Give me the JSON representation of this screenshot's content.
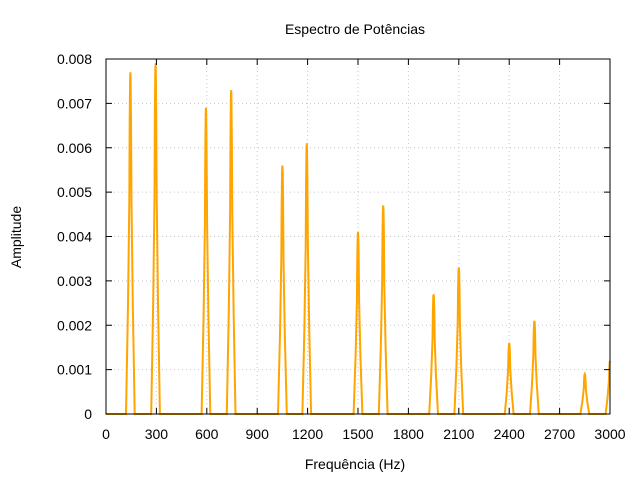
{
  "chart_data": {
    "type": "line",
    "title": "Espectro de Potências",
    "xlabel": "Frequência (Hz)",
    "ylabel": "Amplitude",
    "xlim": [
      0,
      3000
    ],
    "ylim": [
      0,
      0.008
    ],
    "x_ticks": [
      "0",
      "300",
      "600",
      "900",
      "1200",
      "1500",
      "1800",
      "2100",
      "2400",
      "2700",
      "3000"
    ],
    "y_ticks": [
      "0",
      "0.001",
      "0.002",
      "0.003",
      "0.004",
      "0.005",
      "0.006",
      "0.007",
      "0.008"
    ],
    "grid": true,
    "line_color": "#ffa500",
    "series": [
      {
        "peaks": [
          {
            "x": 145,
            "y": 0.0077
          },
          {
            "x": 295,
            "y": 0.0079
          },
          {
            "x": 595,
            "y": 0.0069
          },
          {
            "x": 745,
            "y": 0.0073
          },
          {
            "x": 1050,
            "y": 0.0056
          },
          {
            "x": 1195,
            "y": 0.0061
          },
          {
            "x": 1500,
            "y": 0.0041
          },
          {
            "x": 1650,
            "y": 0.0047
          },
          {
            "x": 1950,
            "y": 0.0027
          },
          {
            "x": 2100,
            "y": 0.0033
          },
          {
            "x": 2400,
            "y": 0.0016
          },
          {
            "x": 2550,
            "y": 0.0021
          },
          {
            "x": 2850,
            "y": 0.0009
          },
          {
            "x": 3000,
            "y": 0.0012
          }
        ]
      }
    ]
  }
}
